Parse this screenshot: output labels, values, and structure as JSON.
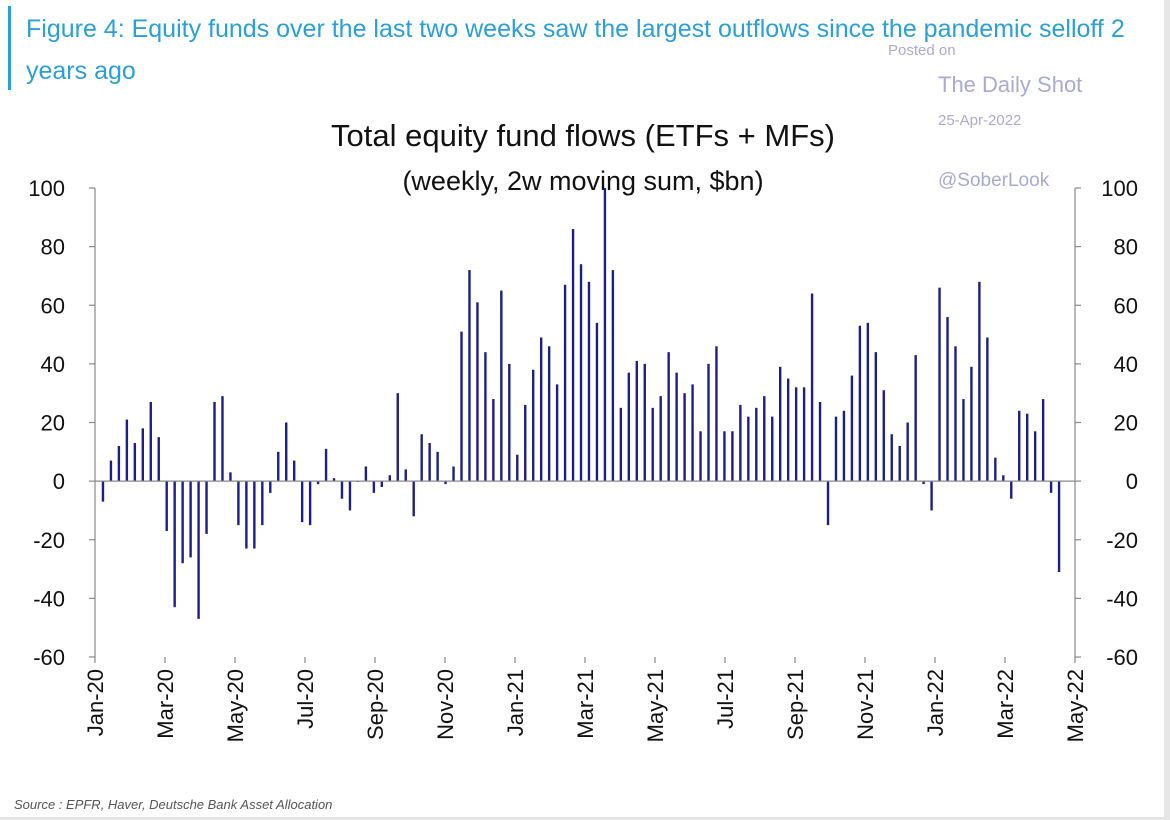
{
  "figure_title": "Figure 4: Equity funds over the last two weeks saw the largest outflows since the pandemic selloff 2 years ago",
  "watermark": {
    "posted_on": "Posted on",
    "site": "The Daily Shot",
    "date": "25-Apr-2022",
    "handle": "@SoberLook"
  },
  "source": "Source : EPFR, Haver, Deutsche Bank Asset Allocation",
  "colors": {
    "bar": "#1e1e8a",
    "axis": "#888888",
    "title": "#2a9fd8",
    "watermark": "#a9a9d6"
  },
  "chart_data": {
    "type": "bar",
    "title": "Total equity fund flows (ETFs + MFs)",
    "subtitle": "(weekly, 2w moving sum, $bn)",
    "xlabel": "",
    "ylabel": "",
    "ylim": [
      -60,
      100
    ],
    "yticks": [
      -60,
      -40,
      -20,
      0,
      20,
      40,
      60,
      80,
      100
    ],
    "x_tick_labels": [
      "Jan-20",
      "Mar-20",
      "May-20",
      "Jul-20",
      "Sep-20",
      "Nov-20",
      "Jan-21",
      "Mar-21",
      "May-21",
      "Jul-21",
      "Sep-21",
      "Nov-21",
      "Jan-22",
      "Mar-22",
      "May-22"
    ],
    "grid": false,
    "legend": "none",
    "series": [
      {
        "values": [
          -7,
          7,
          12,
          21,
          13,
          18,
          27,
          15,
          -17,
          -43,
          -28,
          -26,
          -47,
          -18,
          27,
          29,
          3,
          -15,
          -23,
          -23,
          -15,
          -4,
          10,
          20,
          7,
          -14,
          -15,
          -1,
          11,
          1,
          -6,
          -10,
          0,
          5,
          -4,
          -2,
          2,
          30,
          4,
          -12,
          16,
          13,
          10,
          -1,
          5,
          51,
          72,
          61,
          44,
          28,
          65,
          40,
          9,
          26,
          38,
          49,
          46,
          33,
          67,
          86,
          74,
          68,
          54,
          100,
          72,
          25,
          37,
          41,
          40,
          25,
          29,
          44,
          37,
          30,
          33,
          17,
          40,
          46,
          17,
          17,
          26,
          22,
          25,
          29,
          22,
          39,
          35,
          32,
          32,
          64,
          27,
          -15,
          22,
          24,
          36,
          53,
          54,
          44,
          31,
          16,
          12,
          20,
          43,
          -1,
          -10,
          66,
          56,
          46,
          28,
          39,
          68,
          49,
          8,
          2,
          -6,
          24,
          23,
          17,
          28,
          -4,
          -31
        ]
      }
    ]
  }
}
